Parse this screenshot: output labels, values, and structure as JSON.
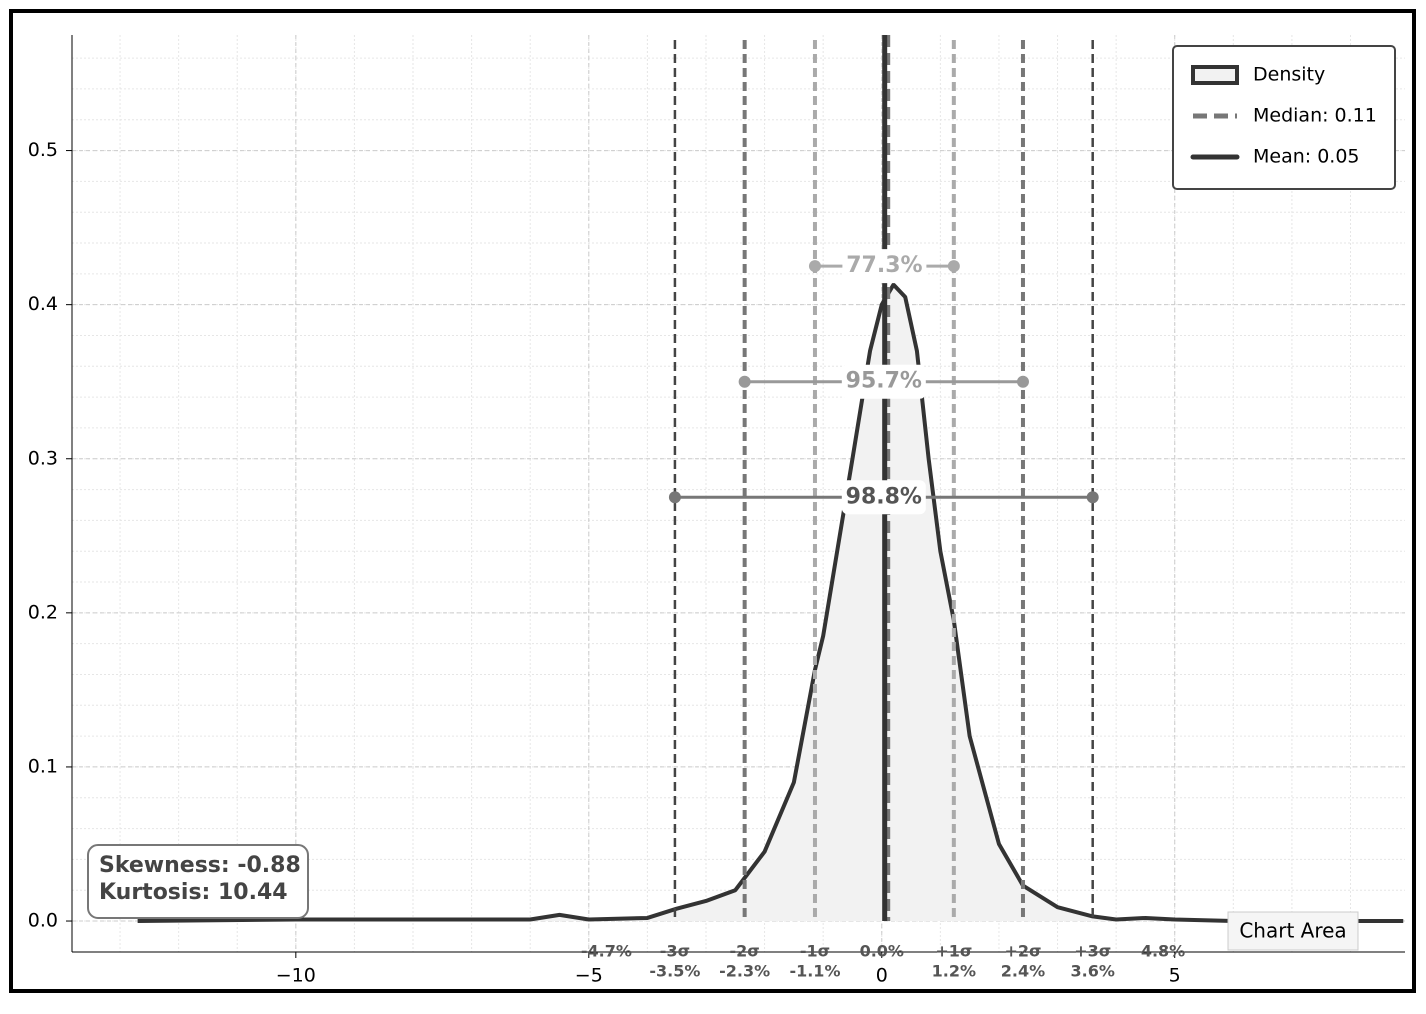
{
  "chart_data": {
    "type": "density",
    "x": [
      -12.7,
      -10,
      -8,
      -6,
      -5.5,
      -5,
      -4,
      -3.5,
      -3,
      -2.5,
      -2.34,
      -2,
      -1.5,
      -1.14,
      -1,
      -0.5,
      -0.2,
      0,
      0.2,
      0.4,
      0.6,
      0.8,
      1,
      1.23,
      1.5,
      2,
      2.41,
      3,
      3.6,
      4,
      4.5,
      5,
      6,
      8.9
    ],
    "series": [
      {
        "name": "Density",
        "color": "#333333",
        "fill": "#f2f2f2",
        "values": [
          0,
          0.001,
          0.001,
          0.001,
          0.004,
          0.001,
          0.002,
          0.008,
          0.013,
          0.02,
          0.028,
          0.045,
          0.09,
          0.163,
          0.185,
          0.3,
          0.37,
          0.4,
          0.413,
          0.405,
          0.37,
          0.3,
          0.24,
          0.195,
          0.12,
          0.05,
          0.023,
          0.009,
          0.003,
          0.001,
          0.002,
          0.001,
          0,
          0
        ]
      }
    ],
    "median": {
      "name": "Median: 0.11",
      "value": 0.11,
      "color": "#777777"
    },
    "mean": {
      "name": "Mean: 0.05",
      "value": 0.05,
      "color": "#333333"
    },
    "sigma_lines": [
      {
        "name": "-3σ",
        "value": -3.53,
        "label": "-3.5%",
        "color": "#444444"
      },
      {
        "name": "-2σ",
        "value": -2.34,
        "label": "-2.3%",
        "color": "#777777"
      },
      {
        "name": "-1σ",
        "value": -1.14,
        "label": "-1.1%",
        "color": "#aaaaaa"
      },
      {
        "name": "+1σ",
        "value": 1.23,
        "label": "1.2%",
        "color": "#aaaaaa"
      },
      {
        "name": "+2σ",
        "value": 2.41,
        "label": "2.4%",
        "color": "#777777"
      },
      {
        "name": "+3σ",
        "value": 3.6,
        "label": "3.6%",
        "color": "#444444"
      }
    ],
    "ranges": [
      {
        "value": 77.3,
        "label": "77.3%",
        "y": 0.425,
        "color": "#aaaaaa"
      },
      {
        "value": 95.7,
        "label": "95.7%",
        "y": 0.35,
        "color": "#999999"
      },
      {
        "value": 98.8,
        "label": "98.8%",
        "y": 0.275,
        "color": "#777777"
      }
    ],
    "bottom_labels": [
      {
        "value": -4.7,
        "label": "-4.7%"
      },
      {
        "value": 0,
        "label": "0.0%"
      },
      {
        "value": 4.8,
        "label": "4.8%"
      }
    ],
    "stats": [
      "Skewness: -0.88",
      "Kurtosis: 10.44"
    ],
    "tooltip": "Chart Area",
    "xlim": [
      -13.82,
      8.93
    ],
    "ylim": [
      -0.0201,
      0.575
    ],
    "xticks": [
      {
        "value": -10,
        "label": "−10"
      },
      {
        "value": -5,
        "label": "−5"
      },
      0,
      5
    ],
    "yticks": [
      {
        "value": 0,
        "label": "0.0"
      },
      {
        "value": 0.1,
        "label": "0.1"
      },
      {
        "value": 0.2,
        "label": "0.2"
      },
      {
        "value": 0.3,
        "label": "0.3"
      },
      {
        "value": 0.4,
        "label": "0.4"
      },
      {
        "value": 0.5,
        "label": "0.5"
      }
    ],
    "grid": true,
    "minor_grid": true,
    "legend": "upper right"
  }
}
